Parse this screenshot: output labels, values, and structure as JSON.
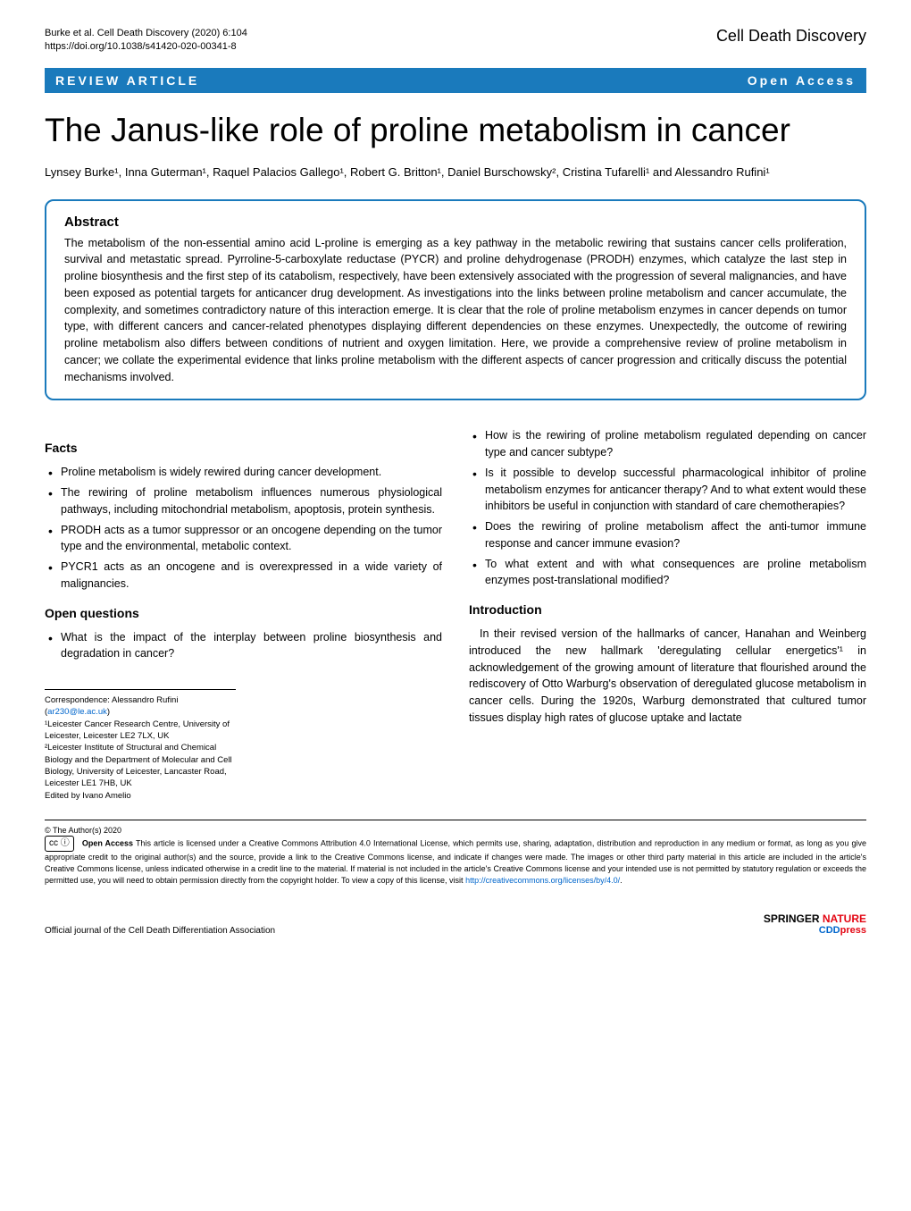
{
  "header": {
    "citation_line1": "Burke et al. Cell Death Discovery          (2020) 6:104",
    "citation_line2": "https://doi.org/10.1038/s41420-020-00341-8",
    "journal": "Cell Death Discovery"
  },
  "article_bar": {
    "type": "REVIEW ARTICLE",
    "access": "Open Access"
  },
  "title": "The Janus-like role of proline metabolism in cancer",
  "authors": "Lynsey Burke¹, Inna Guterman¹, Raquel Palacios Gallego¹, Robert G. Britton¹, Daniel Burschowsky², Cristina Tufarelli¹ and Alessandro Rufini¹",
  "abstract": {
    "heading": "Abstract",
    "text": "The metabolism of the non-essential amino acid L-proline is emerging as a key pathway in the metabolic rewiring that sustains cancer cells proliferation, survival and metastatic spread. Pyrroline-5-carboxylate reductase (PYCR) and proline dehydrogenase (PRODH) enzymes, which catalyze the last step in proline biosynthesis and the first step of its catabolism, respectively, have been extensively associated with the progression of several malignancies, and have been exposed as potential targets for anticancer drug development. As investigations into the links between proline metabolism and cancer accumulate, the complexity, and sometimes contradictory nature of this interaction emerge. It is clear that the role of proline metabolism enzymes in cancer depends on tumor type, with different cancers and cancer-related phenotypes displaying different dependencies on these enzymes. Unexpectedly, the outcome of rewiring proline metabolism also differs between conditions of nutrient and oxygen limitation. Here, we provide a comprehensive review of proline metabolism in cancer; we collate the experimental evidence that links proline metabolism with the different aspects of cancer progression and critically discuss the potential mechanisms involved."
  },
  "facts": {
    "heading": "Facts",
    "items": [
      "Proline metabolism is widely rewired during cancer development.",
      "The rewiring of proline metabolism influences numerous physiological pathways, including mitochondrial metabolism, apoptosis, protein synthesis.",
      "PRODH acts as a tumor suppressor or an oncogene depending on the tumor type and the environmental, metabolic context.",
      "PYCR1 acts as an oncogene and is overexpressed in a wide variety of malignancies."
    ]
  },
  "open_questions": {
    "heading": "Open questions",
    "items": [
      "What is the impact of the interplay between proline biosynthesis and degradation in cancer?",
      "How is the rewiring of proline metabolism regulated depending on cancer type and cancer subtype?",
      "Is it possible to develop successful pharmacological inhibitor of proline metabolism enzymes for anticancer therapy? And to what extent would these inhibitors be useful in conjunction with standard of care chemotherapies?",
      "Does the rewiring of proline metabolism affect the anti-tumor immune response and cancer immune evasion?",
      "To what extent and with what consequences are proline metabolism enzymes post-translational modified?"
    ]
  },
  "introduction": {
    "heading": "Introduction",
    "text": "In their revised version of the hallmarks of cancer, Hanahan and Weinberg introduced the new hallmark 'deregulating cellular energetics'¹ in acknowledgement of the growing amount of literature that flourished around the rediscovery of Otto Warburg's observation of deregulated glucose metabolism in cancer cells. During the 1920s, Warburg demonstrated that cultured tumor tissues display high rates of glucose uptake and lactate"
  },
  "correspondence": {
    "label": "Correspondence: Alessandro Rufini (",
    "email": "ar230@le.ac.uk",
    "close": ")",
    "affil1": "¹Leicester Cancer Research Centre, University of Leicester, Leicester LE2 7LX, UK",
    "affil2": "²Leicester Institute of Structural and Chemical Biology and the Department of Molecular and Cell Biology, University of Leicester, Lancaster Road, Leicester LE1 7HB, UK",
    "edited": "Edited by Ivano Amelio"
  },
  "copyright": {
    "holder": "© The Author(s) 2020",
    "cc_label": "cc  ⓘ",
    "oa_bold": "Open Access",
    "text": " This article is licensed under a Creative Commons Attribution 4.0 International License, which permits use, sharing, adaptation, distribution and reproduction in any medium or format, as long as you give appropriate credit to the original author(s) and the source, provide a link to the Creative Commons license, and indicate if changes were made. The images or other third party material in this article are included in the article's Creative Commons license, unless indicated otherwise in a credit line to the material. If material is not included in the article's Creative Commons license and your intended use is not permitted by statutory regulation or exceeds the permitted use, you will need to obtain permission directly from the copyright holder. To view a copy of this license, visit ",
    "link": "http://creativecommons.org/licenses/by/4.0/",
    "period": "."
  },
  "footer": {
    "left": "Official journal of the Cell Death Differentiation Association",
    "springer": "SPRINGER",
    "nature": " NATURE",
    "cdd": "CDD",
    "press": "press"
  }
}
